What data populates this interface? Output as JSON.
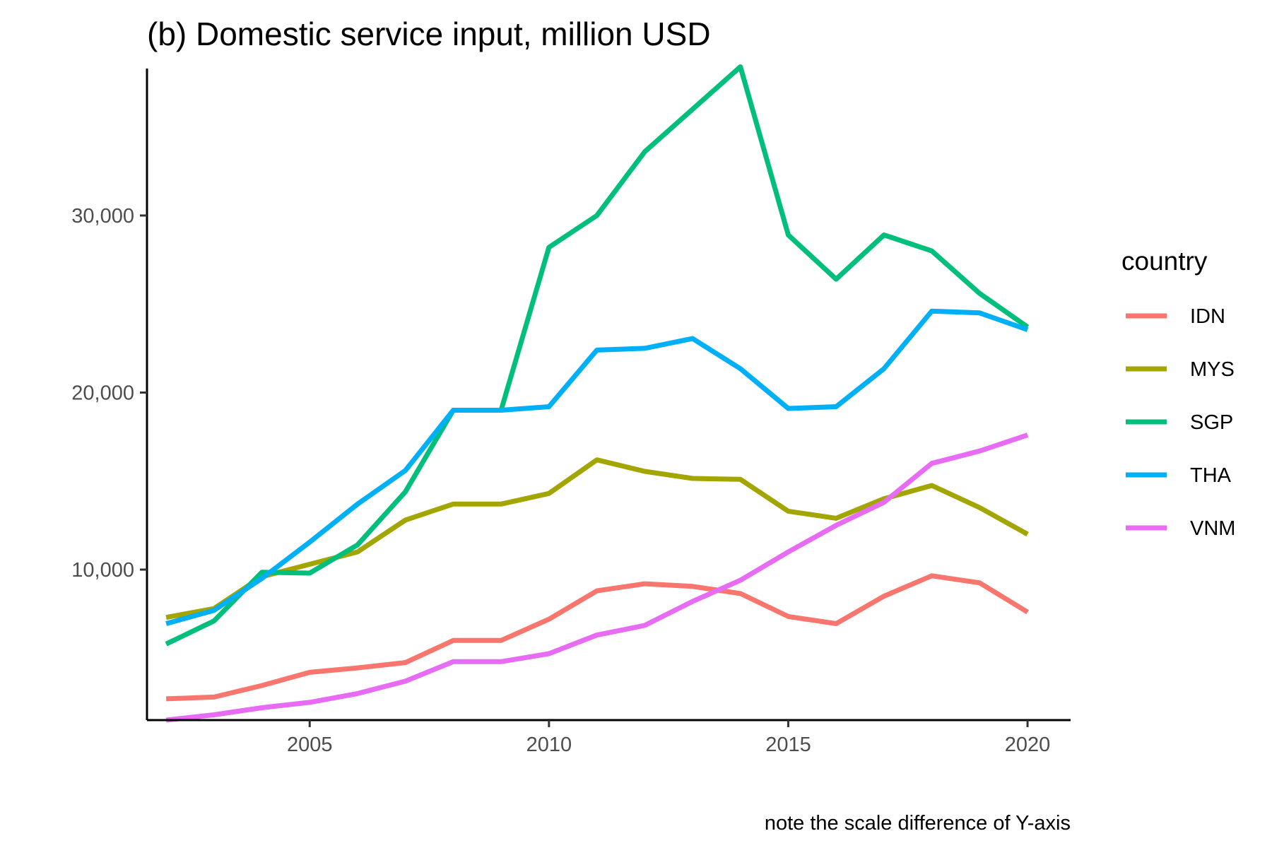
{
  "chart_data": {
    "type": "line",
    "title": "(b) Domestic service input, million USD",
    "caption": "note the scale difference of Y-axis",
    "xlabel": "",
    "ylabel": "",
    "xlim": [
      2001.6,
      2020.9
    ],
    "ylim": [
      1500,
      38300
    ],
    "x_ticks": [
      2005,
      2010,
      2015,
      2020
    ],
    "x_tick_labels": [
      "2005",
      "2010",
      "2015",
      "2020"
    ],
    "y_ticks": [
      10000,
      20000,
      30000
    ],
    "y_tick_labels": [
      "10,000",
      "20,000",
      "30,000"
    ],
    "grid": false,
    "legend": {
      "title": "country",
      "position": "right"
    },
    "x": [
      2002,
      2003,
      2004,
      2005,
      2006,
      2007,
      2008,
      2009,
      2010,
      2011,
      2012,
      2013,
      2014,
      2015,
      2016,
      2017,
      2018,
      2019,
      2020
    ],
    "series": [
      {
        "name": "IDN",
        "color": "#F8766D",
        "values": [
          2700,
          2800,
          3450,
          4200,
          4450,
          4750,
          6000,
          6000,
          7200,
          8800,
          9200,
          9050,
          8650,
          7350,
          6950,
          8500,
          9650,
          9250,
          7600
        ]
      },
      {
        "name": "MYS",
        "color": "#A3A500",
        "values": [
          7300,
          7800,
          9600,
          10300,
          11000,
          12800,
          13700,
          13700,
          14300,
          16200,
          15550,
          15150,
          15100,
          13300,
          12900,
          14000,
          14750,
          13500,
          12000
        ]
      },
      {
        "name": "SGP",
        "color": "#00BF7D",
        "values": [
          5800,
          7100,
          9850,
          9800,
          11400,
          14400,
          19000,
          19000,
          28200,
          30000,
          33600,
          36000,
          38400,
          28900,
          26400,
          28900,
          28000,
          25600,
          23700
        ]
      },
      {
        "name": "THA",
        "color": "#00B0F6",
        "values": [
          6950,
          7700,
          9500,
          11550,
          13700,
          15600,
          19000,
          19000,
          19200,
          22400,
          22500,
          23050,
          21350,
          19100,
          19200,
          21350,
          24600,
          24500,
          23550
        ]
      },
      {
        "name": "VNM",
        "color": "#E76BF3",
        "values": [
          1500,
          1800,
          2200,
          2500,
          3000,
          3700,
          4800,
          4800,
          5250,
          6300,
          6850,
          8200,
          9400,
          11000,
          12500,
          13800,
          16000,
          16700,
          17600
        ]
      }
    ]
  }
}
